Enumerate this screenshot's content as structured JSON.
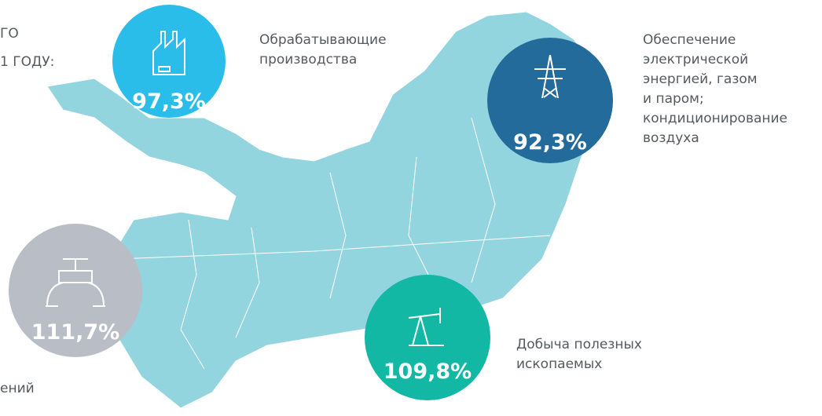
{
  "header": {
    "lines": [
      "ГО",
      "1 ГОДУ:"
    ]
  },
  "footer": {
    "text": "ений"
  },
  "items": [
    {
      "value": "97,3%",
      "label": [
        "Обрабатывающие",
        "производства"
      ]
    },
    {
      "value": "92,3%",
      "label": [
        "Обеспечение",
        "электрической",
        "энергией, газом",
        "и паром;",
        "кондиционирование",
        "воздуха"
      ]
    },
    {
      "value": "111,7%",
      "label": []
    },
    {
      "value": "109,8%",
      "label": [
        "Добыча полезных",
        "ископаемых"
      ]
    }
  ]
}
